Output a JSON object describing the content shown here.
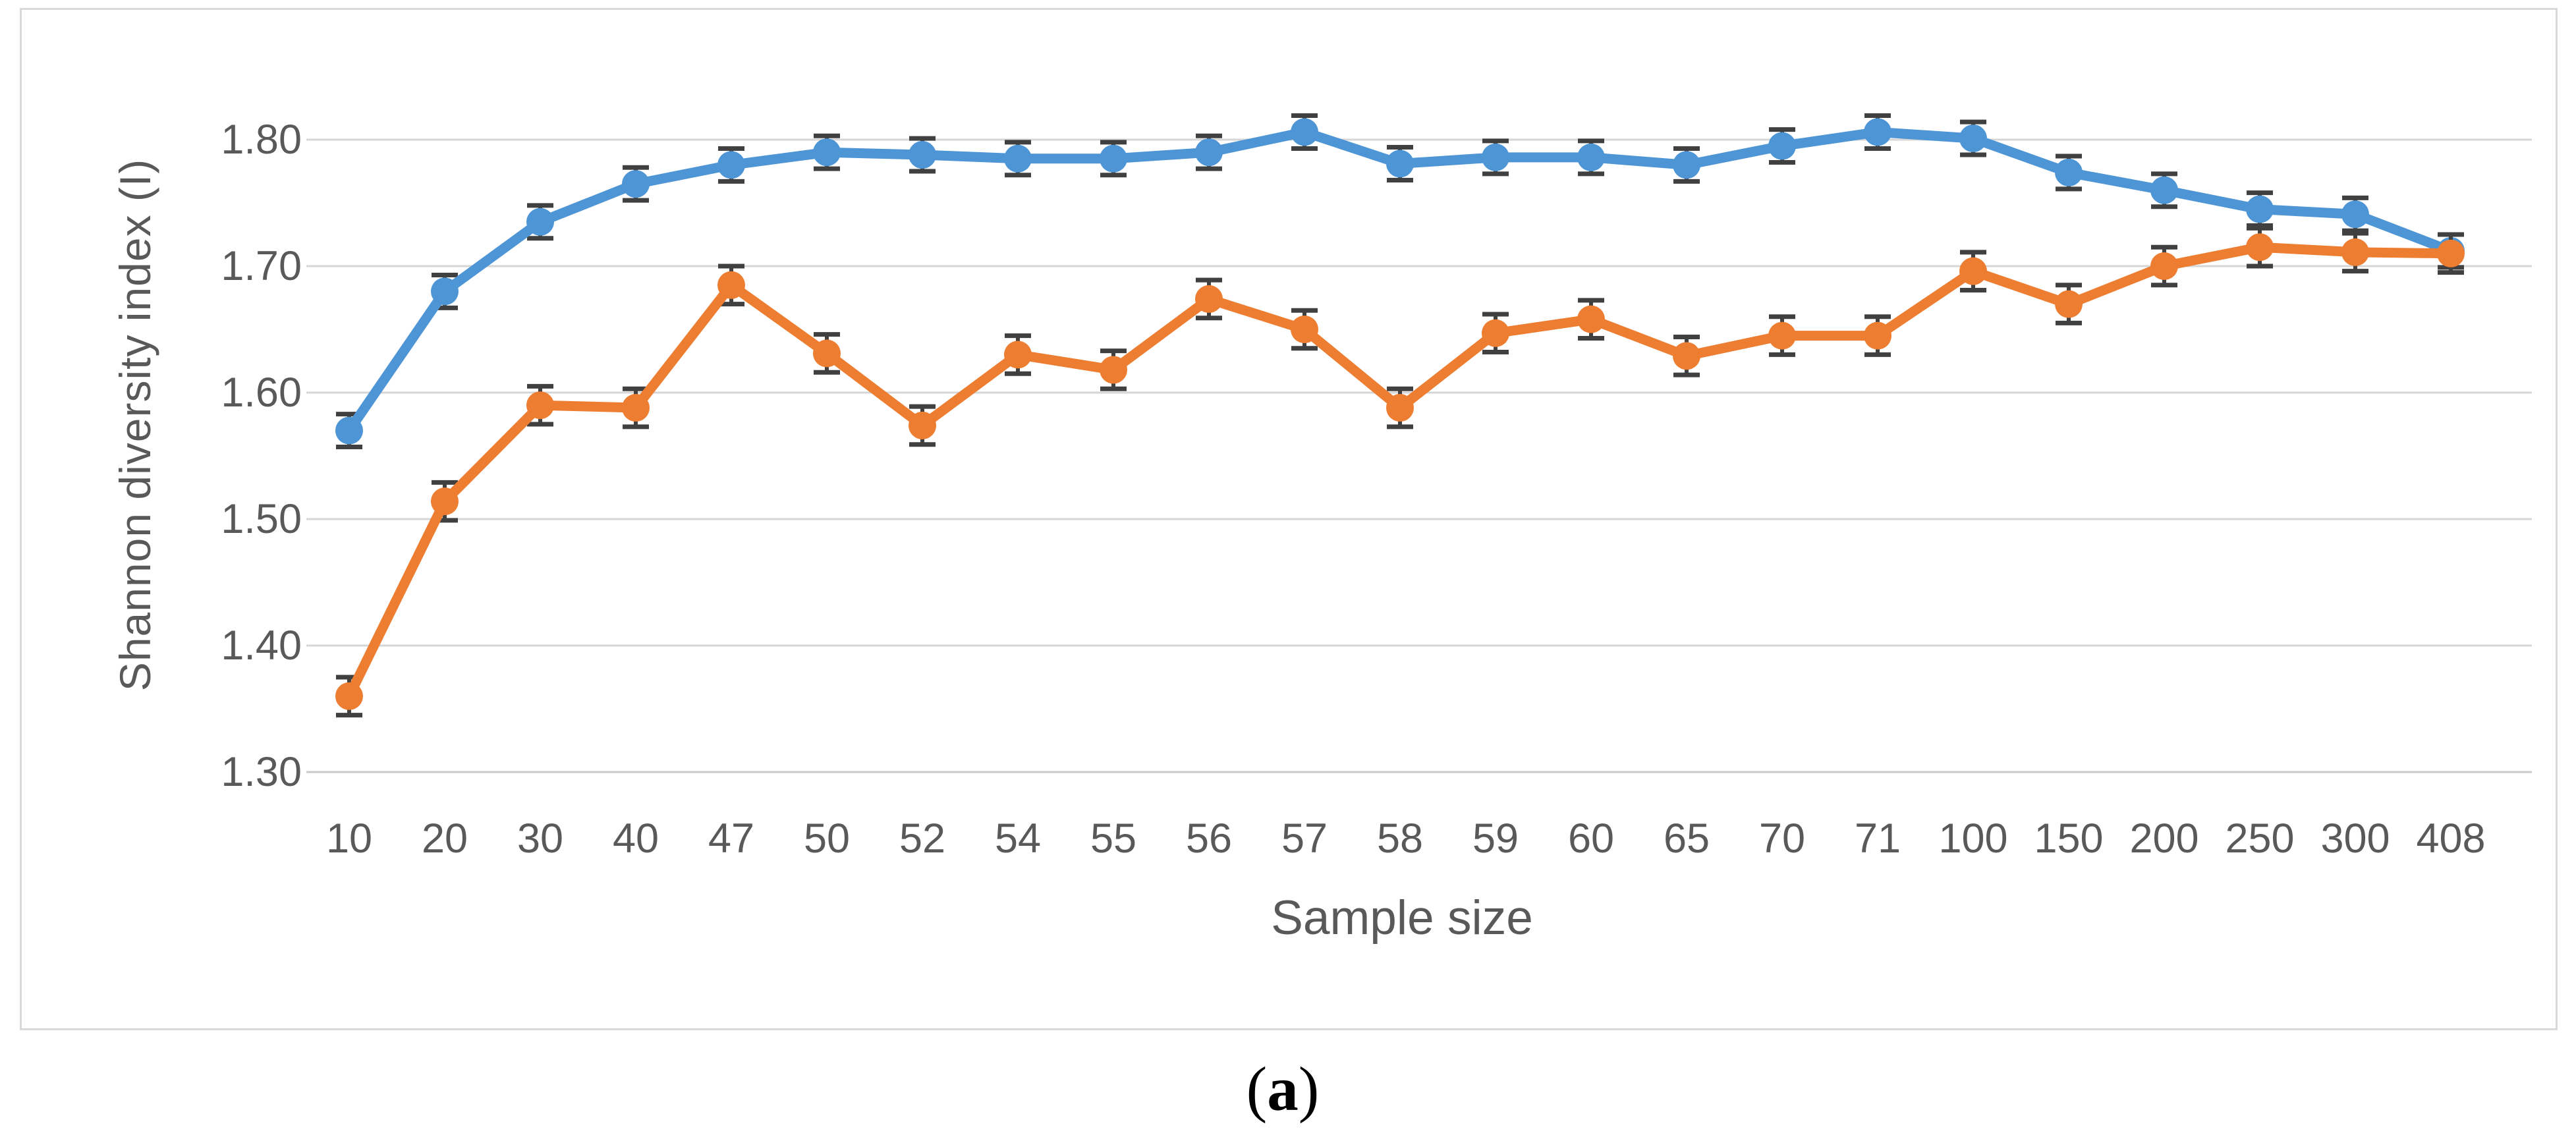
{
  "figure": {
    "caption": {
      "open": "(",
      "letter": "a",
      "close": ")"
    }
  },
  "chart_data": {
    "type": "line",
    "title": "",
    "xlabel": "Sample size",
    "ylabel": "Shannon diversity index (I)",
    "x_tick_labels": [
      "10",
      "20",
      "30",
      "40",
      "47",
      "50",
      "52",
      "54",
      "55",
      "56",
      "57",
      "58",
      "59",
      "60",
      "65",
      "70",
      "71",
      "100",
      "150",
      "200",
      "250",
      "300",
      "408"
    ],
    "y_tick_labels": [
      "1.30",
      "1.40",
      "1.50",
      "1.60",
      "1.70",
      "1.80"
    ],
    "ylim": [
      1.3,
      1.85
    ],
    "grid": true,
    "legend": false,
    "error_bars": true,
    "colors": {
      "grid": "#D6D6D6",
      "axis_line": "#C9C9C9",
      "error_bar": "#404040",
      "tick_text": "#595959"
    },
    "series": [
      {
        "id": "blue",
        "color": "#4E95D6",
        "error": 0.013,
        "values": [
          1.57,
          1.68,
          1.735,
          1.765,
          1.78,
          1.79,
          1.788,
          1.785,
          1.785,
          1.79,
          1.806,
          1.781,
          1.786,
          1.786,
          1.78,
          1.795,
          1.806,
          1.801,
          1.774,
          1.76,
          1.745,
          1.741,
          1.712
        ]
      },
      {
        "id": "orange",
        "color": "#ED7D31",
        "error": 0.015,
        "values": [
          1.36,
          1.514,
          1.59,
          1.588,
          1.685,
          1.631,
          1.574,
          1.63,
          1.618,
          1.674,
          1.65,
          1.588,
          1.647,
          1.658,
          1.629,
          1.645,
          1.645,
          1.696,
          1.67,
          1.7,
          1.715,
          1.711,
          1.71
        ]
      }
    ]
  }
}
